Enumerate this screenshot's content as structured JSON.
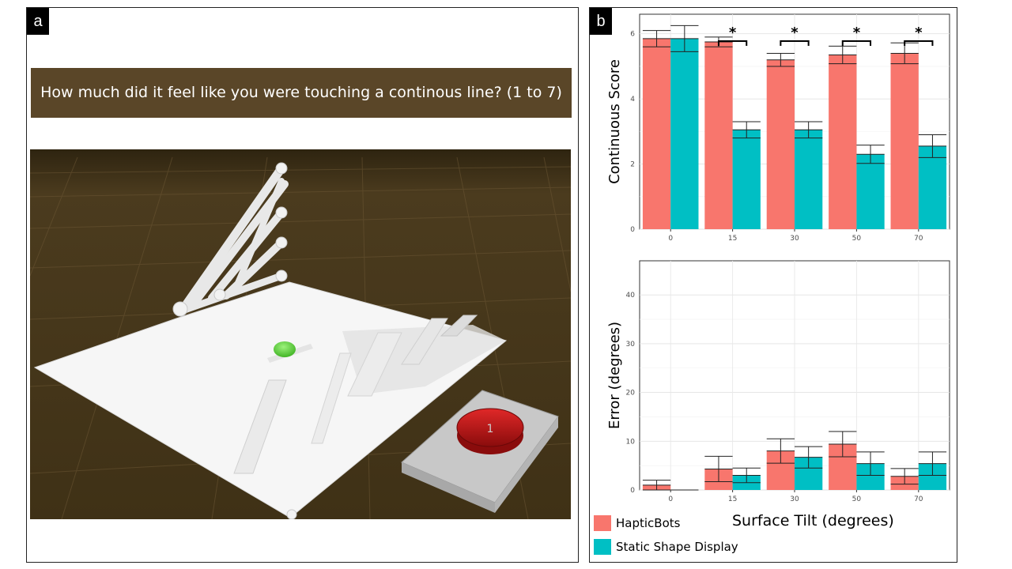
{
  "panel_a": {
    "label": "a",
    "question": "How much did it feel like you were touching a continous line? (1 to 7)",
    "scene_colors": {
      "floor": "#4b3b1e",
      "grid": "#6b5634",
      "surface": "#f4f4f4",
      "green_knob": "#5cd43c",
      "red_puck": "#c41818",
      "gray_base": "#c8c8c8"
    },
    "scene_glyphs": {
      "puck_label": "1"
    }
  },
  "panel_b": {
    "label": "b",
    "xlabel": "Surface Tilt (degrees)",
    "legend": [
      {
        "name": "HapticBots",
        "color": "#f8766d"
      },
      {
        "name": "Static Shape Display",
        "color": "#00bfc4"
      }
    ]
  },
  "chart_data": [
    {
      "type": "bar",
      "ylabel": "Continuous Score",
      "categories": [
        "0",
        "15",
        "30",
        "50",
        "70"
      ],
      "yticks": [
        0,
        2,
        4,
        6
      ],
      "ylim": [
        0,
        6.6
      ],
      "grid": true,
      "series": [
        {
          "name": "HapticBots",
          "color": "#f8766d",
          "values": [
            5.85,
            5.75,
            5.2,
            5.35,
            5.4
          ],
          "err": [
            0.25,
            0.15,
            0.2,
            0.27,
            0.32
          ]
        },
        {
          "name": "Static Shape Display",
          "color": "#00bfc4",
          "values": [
            5.85,
            3.05,
            3.05,
            2.3,
            2.55
          ],
          "err": [
            0.4,
            0.25,
            0.25,
            0.28,
            0.35
          ]
        }
      ],
      "significance": [
        {
          "category": "15",
          "mark": "*"
        },
        {
          "category": "30",
          "mark": "*"
        },
        {
          "category": "50",
          "mark": "*"
        },
        {
          "category": "70",
          "mark": "*"
        }
      ]
    },
    {
      "type": "bar",
      "ylabel": "Error (degrees)",
      "categories": [
        "0",
        "15",
        "30",
        "50",
        "70"
      ],
      "yticks": [
        0,
        10,
        20,
        30,
        40
      ],
      "ylim": [
        0,
        47
      ],
      "grid": true,
      "series": [
        {
          "name": "HapticBots",
          "color": "#f8766d",
          "values": [
            1.0,
            4.3,
            8.0,
            9.4,
            2.8
          ],
          "err": [
            1.0,
            2.6,
            2.5,
            2.6,
            1.6
          ]
        },
        {
          "name": "Static Shape Display",
          "color": "#00bfc4",
          "values": [
            0,
            3.0,
            6.7,
            5.4,
            5.4
          ],
          "err": [
            0,
            1.5,
            2.2,
            2.4,
            2.4
          ]
        }
      ]
    }
  ]
}
